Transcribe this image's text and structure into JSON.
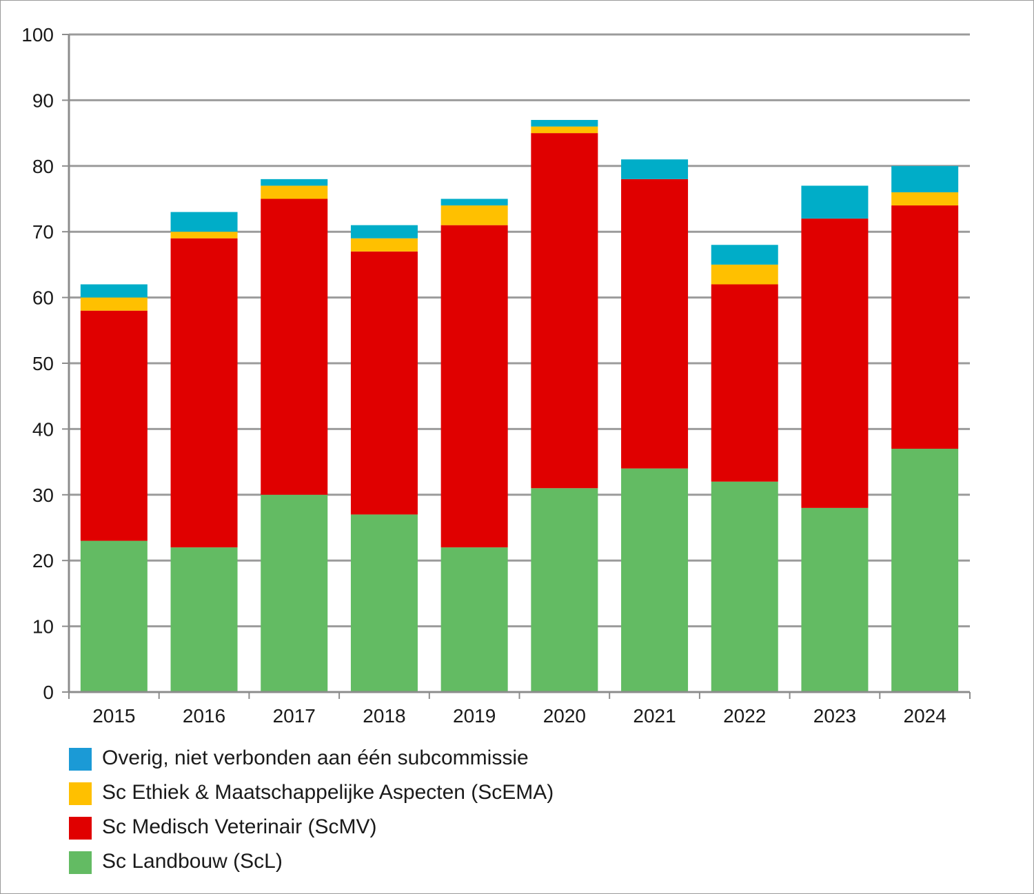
{
  "chart_data": {
    "type": "bar",
    "stacked": true,
    "title": "",
    "xlabel": "",
    "ylabel": "",
    "ylim": [
      0,
      100
    ],
    "yticks": [
      0,
      10,
      20,
      30,
      40,
      50,
      60,
      70,
      80,
      90,
      100
    ],
    "grid": true,
    "categories": [
      "2015",
      "2016",
      "2017",
      "2018",
      "2019",
      "2020",
      "2021",
      "2022",
      "2023",
      "2024"
    ],
    "series": [
      {
        "key": "scl",
        "name": "Sc Landbouw (ScL)",
        "color": "#63bb63",
        "values": [
          23,
          22,
          30,
          27,
          22,
          31,
          34,
          32,
          28,
          37
        ]
      },
      {
        "key": "scmv",
        "name": "Sc Medisch Veterinair (ScMV)",
        "color": "#e00000",
        "values": [
          35,
          47,
          45,
          40,
          49,
          54,
          44,
          30,
          44,
          37
        ]
      },
      {
        "key": "scema",
        "name": "Sc Ethiek & Maatschappelijke Aspecten (ScEMA)",
        "color": "#ffc000",
        "values": [
          2,
          1,
          2,
          2,
          3,
          1,
          0,
          3,
          0,
          2
        ]
      },
      {
        "key": "overig",
        "name": "Overig, niet verbonden aan één subcommissie",
        "color": "#00adc8",
        "values": [
          2,
          3,
          1,
          2,
          1,
          1,
          3,
          3,
          5,
          4
        ]
      }
    ],
    "legend": {
      "position": "bottom-left",
      "order": [
        "overig",
        "scema",
        "scmv",
        "scl"
      ]
    }
  }
}
